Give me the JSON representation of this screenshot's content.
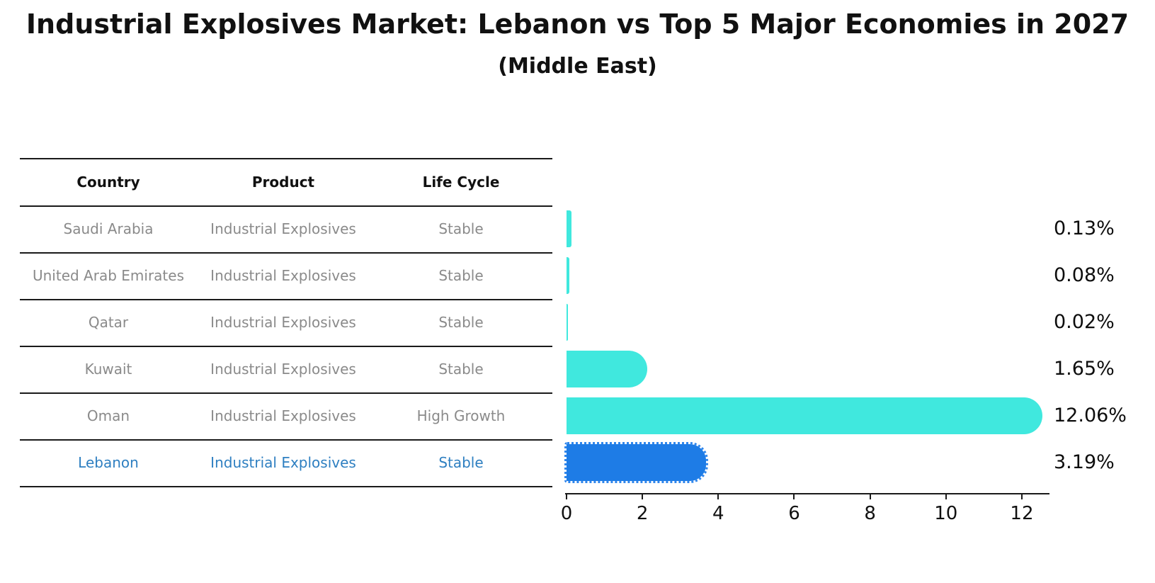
{
  "title": "Industrial Explosives Market: Lebanon vs Top 5 Major Economies in 2027",
  "subtitle": "(Middle East)",
  "table": {
    "columns": [
      "Country",
      "Product",
      "Life Cycle"
    ],
    "rows": [
      {
        "country": "Saudi Arabia",
        "product": "Industrial Explosives",
        "life_cycle": "Stable",
        "highlight": false
      },
      {
        "country": "United Arab Emirates",
        "product": "Industrial Explosives",
        "life_cycle": "Stable",
        "highlight": false
      },
      {
        "country": "Qatar",
        "product": "Industrial Explosives",
        "life_cycle": "Stable",
        "highlight": false
      },
      {
        "country": "Kuwait",
        "product": "Industrial Explosives",
        "life_cycle": "Stable",
        "highlight": false
      },
      {
        "country": "Oman",
        "product": "Industrial Explosives",
        "life_cycle": "High Growth",
        "highlight": false
      },
      {
        "country": "Lebanon",
        "product": "Industrial Explosives",
        "life_cycle": "Stable",
        "highlight": true
      }
    ]
  },
  "chart_data": {
    "type": "bar",
    "orientation": "horizontal",
    "title": "Industrial Explosives Market: Lebanon vs Top 5 Major Economies in 2027",
    "subtitle": "(Middle East)",
    "categories": [
      "Saudi Arabia",
      "United Arab Emirates",
      "Qatar",
      "Kuwait",
      "Oman",
      "Lebanon"
    ],
    "values": [
      0.13,
      0.08,
      0.02,
      1.65,
      12.06,
      3.19
    ],
    "value_labels": [
      "0.13%",
      "0.08%",
      "0.02%",
      "1.65%",
      "12.06%",
      "3.19%"
    ],
    "x_ticks": [
      0,
      2,
      4,
      6,
      8,
      10,
      12
    ],
    "xlim": [
      0,
      12.7
    ],
    "xlabel": "",
    "ylabel": "",
    "grid": false,
    "legend": false,
    "bar_color": "#40e8de",
    "highlight_bar_color": "#1e7ce6",
    "highlight_index": 5,
    "highlight_style": "dotted-edge"
  },
  "colors": {
    "bar_cyan": "#40e8de",
    "bar_blue": "#1e7ce6",
    "highlight_text_blue": "#2e7fc1",
    "row_text_gray": "#8a8a8a",
    "line_black": "#1a1a1a"
  }
}
